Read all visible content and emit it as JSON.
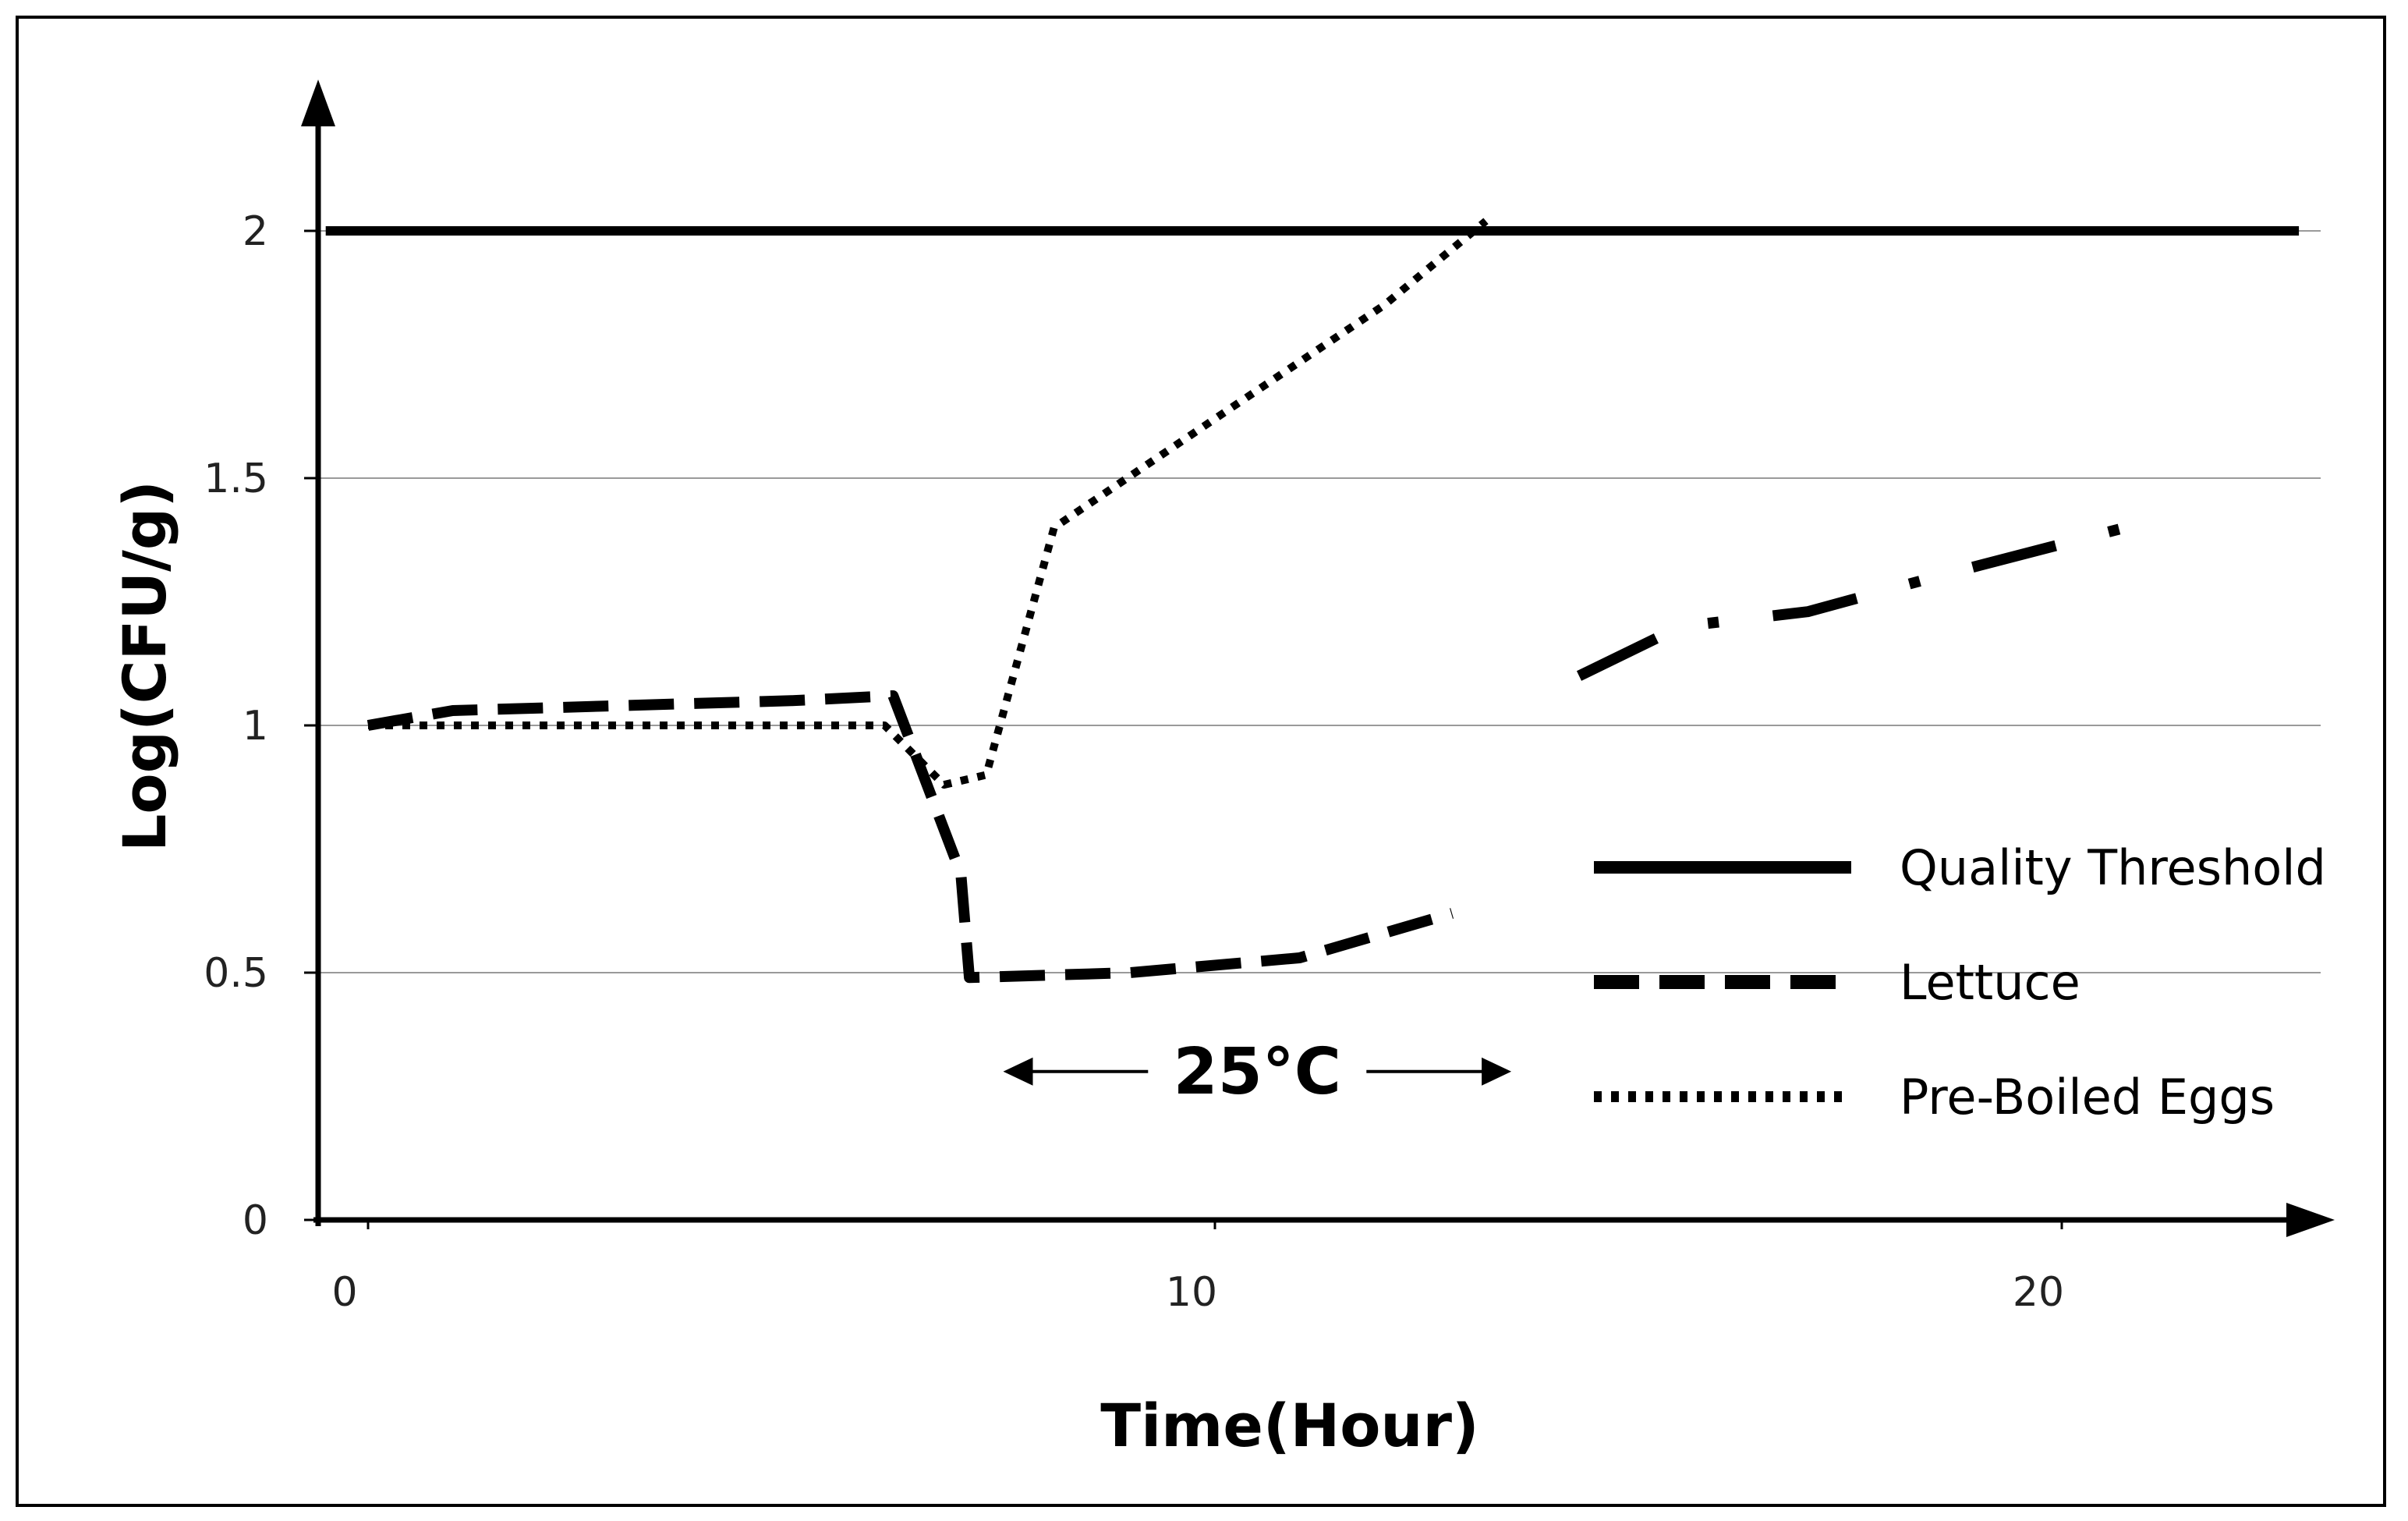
{
  "chart_data": {
    "type": "line",
    "xlabel": "Time(Hour)",
    "ylabel": "Log(CFU/g)",
    "xlim": [
      -0.5,
      23.5
    ],
    "ylim": [
      0,
      2.3
    ],
    "x_ticks": [
      0,
      10,
      20
    ],
    "y_ticks": [
      0,
      0.5,
      1,
      1.5,
      2
    ],
    "x_tick_labels": [
      "0",
      "10",
      "20"
    ],
    "y_tick_labels": [
      "0",
      "0.5",
      "1",
      "1.5",
      "2"
    ],
    "grid": true,
    "legend_position": "right",
    "series": [
      {
        "name": "Quality Threshold",
        "style": "solid",
        "color": "#000000",
        "points": [
          [
            -0.5,
            2
          ],
          [
            22.8,
            2
          ]
        ]
      },
      {
        "name": "Lettuce",
        "style": "dashed",
        "color": "#000000",
        "points": [
          [
            0,
            1.0
          ],
          [
            1,
            1.03
          ],
          [
            3,
            1.04
          ],
          [
            5,
            1.05
          ],
          [
            6.2,
            1.06
          ],
          [
            7,
            0.7
          ],
          [
            7.1,
            0.49
          ],
          [
            9,
            0.5
          ],
          [
            11,
            0.53
          ],
          [
            12.8,
            0.62
          ]
        ]
      },
      {
        "name": "Pre-Boiled Eggs",
        "style": "dotted",
        "color": "#000000",
        "points": [
          [
            0,
            1.0
          ],
          [
            6.1,
            1.0
          ],
          [
            6.8,
            0.88
          ],
          [
            7.3,
            0.9
          ],
          [
            8.1,
            1.4
          ],
          [
            10,
            1.62
          ],
          [
            12,
            1.85
          ],
          [
            13.2,
            2.02
          ]
        ]
      },
      {
        "name": "",
        "style": "dash-dot",
        "color": "#000000",
        "points": [
          [
            14.3,
            1.1
          ],
          [
            15.5,
            1.2
          ],
          [
            17,
            1.23
          ],
          [
            18.5,
            1.3
          ],
          [
            21.2,
            1.42
          ]
        ]
      }
    ],
    "annotations": [
      {
        "text": "25°C",
        "x_start": 7.5,
        "x_end": 13.5,
        "y": 0.3
      }
    ]
  }
}
